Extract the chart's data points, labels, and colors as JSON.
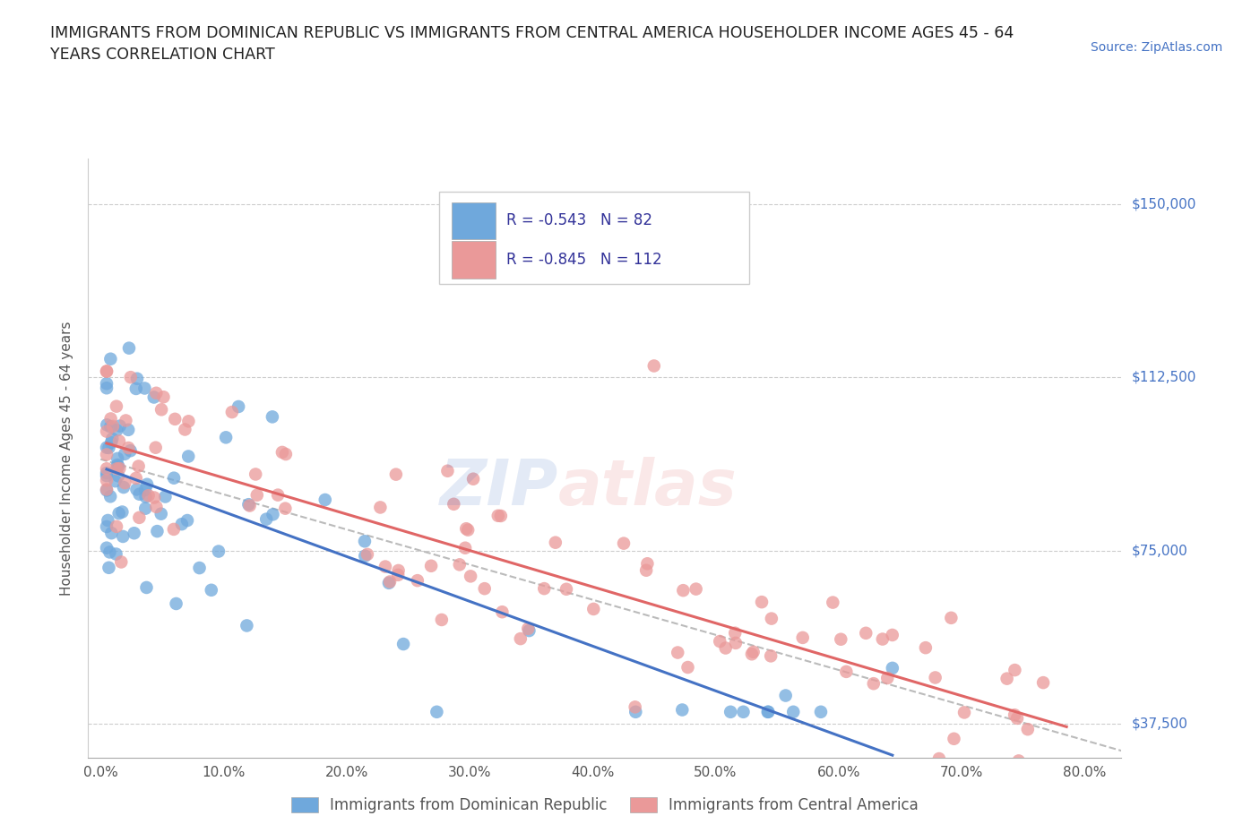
{
  "title": "IMMIGRANTS FROM DOMINICAN REPUBLIC VS IMMIGRANTS FROM CENTRAL AMERICA HOUSEHOLDER INCOME AGES 45 - 64\nYEARS CORRELATION CHART",
  "source_text": "Source: ZipAtlas.com",
  "xlabel_ticks": [
    "0.0%",
    "10.0%",
    "20.0%",
    "30.0%",
    "40.0%",
    "50.0%",
    "60.0%",
    "70.0%",
    "80.0%"
  ],
  "xlabel_vals": [
    0,
    10,
    20,
    30,
    40,
    50,
    60,
    70,
    80
  ],
  "ylabel_ticks": [
    "$37,500",
    "$75,000",
    "$112,500",
    "$150,000"
  ],
  "ylabel_vals": [
    37500,
    75000,
    112500,
    150000
  ],
  "ylabel_label": "Householder Income Ages 45 - 64 years",
  "legend_labels": [
    "Immigrants from Dominican Republic",
    "Immigrants from Central America"
  ],
  "r_blue": -0.543,
  "n_blue": 82,
  "r_pink": -0.845,
  "n_pink": 112,
  "color_blue": "#6fa8dc",
  "color_pink": "#ea9999",
  "color_blue_line": "#4472c4",
  "color_pink_line": "#e06666",
  "color_dashed": "#bbbbbb",
  "ymin": 30000,
  "ymax": 160000,
  "xmin": -1,
  "xmax": 83
}
